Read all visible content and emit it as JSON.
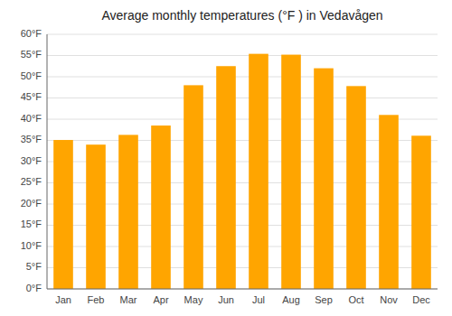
{
  "chart_data": {
    "type": "bar",
    "title": "Average monthly temperatures (°F ) in Vedavågen",
    "categories": [
      "Jan",
      "Feb",
      "Mar",
      "Apr",
      "May",
      "Jun",
      "Jul",
      "Aug",
      "Sep",
      "Oct",
      "Nov",
      "Dec"
    ],
    "values": [
      35.1,
      34.0,
      36.3,
      38.5,
      48.0,
      52.5,
      55.4,
      55.2,
      52.0,
      47.8,
      41.0,
      36.1
    ],
    "color": "#FFA500",
    "ylim": [
      0,
      60
    ],
    "yticks": [
      {
        "value": 0,
        "label": "0°F"
      },
      {
        "value": 5,
        "label": "5°F"
      },
      {
        "value": 10,
        "label": "10°F"
      },
      {
        "value": 15,
        "label": "15°F"
      },
      {
        "value": 20,
        "label": "20°F"
      },
      {
        "value": 25,
        "label": "25°F"
      },
      {
        "value": 30,
        "label": "30°F"
      },
      {
        "value": 35,
        "label": "35°F"
      },
      {
        "value": 40,
        "label": "40°F"
      },
      {
        "value": 45,
        "label": "45°F"
      },
      {
        "value": 50,
        "label": "50°F"
      },
      {
        "value": 55,
        "label": "55°F"
      },
      {
        "value": 60,
        "label": "60°F"
      }
    ],
    "grid": true
  }
}
